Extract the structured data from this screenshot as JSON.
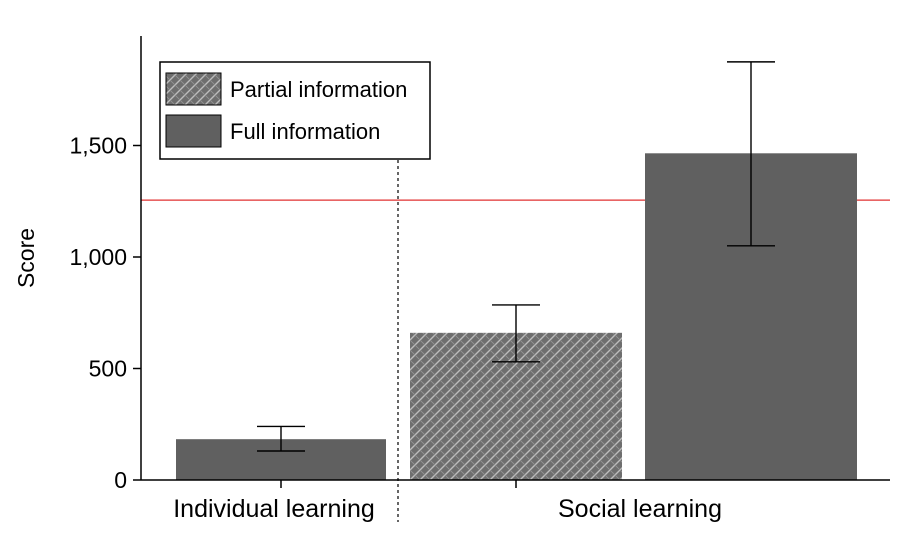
{
  "chart_data": {
    "type": "bar",
    "ylabel": "Score",
    "ylim": [
      0,
      2000
    ],
    "yticks": [
      0,
      500,
      1000,
      1500
    ],
    "ytick_labels": [
      "0",
      "500",
      "1,000",
      "1,500"
    ],
    "groups": [
      {
        "label": "Individual learning",
        "bars": [
          0
        ]
      },
      {
        "label": "Social learning",
        "bars": [
          1,
          2
        ]
      }
    ],
    "bars": [
      {
        "group": "Individual learning",
        "series": "Full information",
        "value": 183,
        "error_low": 130,
        "error_high": 240
      },
      {
        "group": "Social learning",
        "series": "Partial information",
        "value": 660,
        "error_low": 530,
        "error_high": 785
      },
      {
        "group": "Social learning",
        "series": "Full information",
        "value": 1465,
        "error_low": 1050,
        "error_high": 1875
      }
    ],
    "series": [
      {
        "name": "Partial information",
        "color": "#707070",
        "pattern": "crosshatch"
      },
      {
        "name": "Full information",
        "color": "#606060",
        "pattern": "solid"
      }
    ],
    "reference_line": {
      "value": 1255,
      "color": "#e03030"
    },
    "separator": "dashed vertical line between groups",
    "legend_position": "top-left",
    "grid": false
  }
}
